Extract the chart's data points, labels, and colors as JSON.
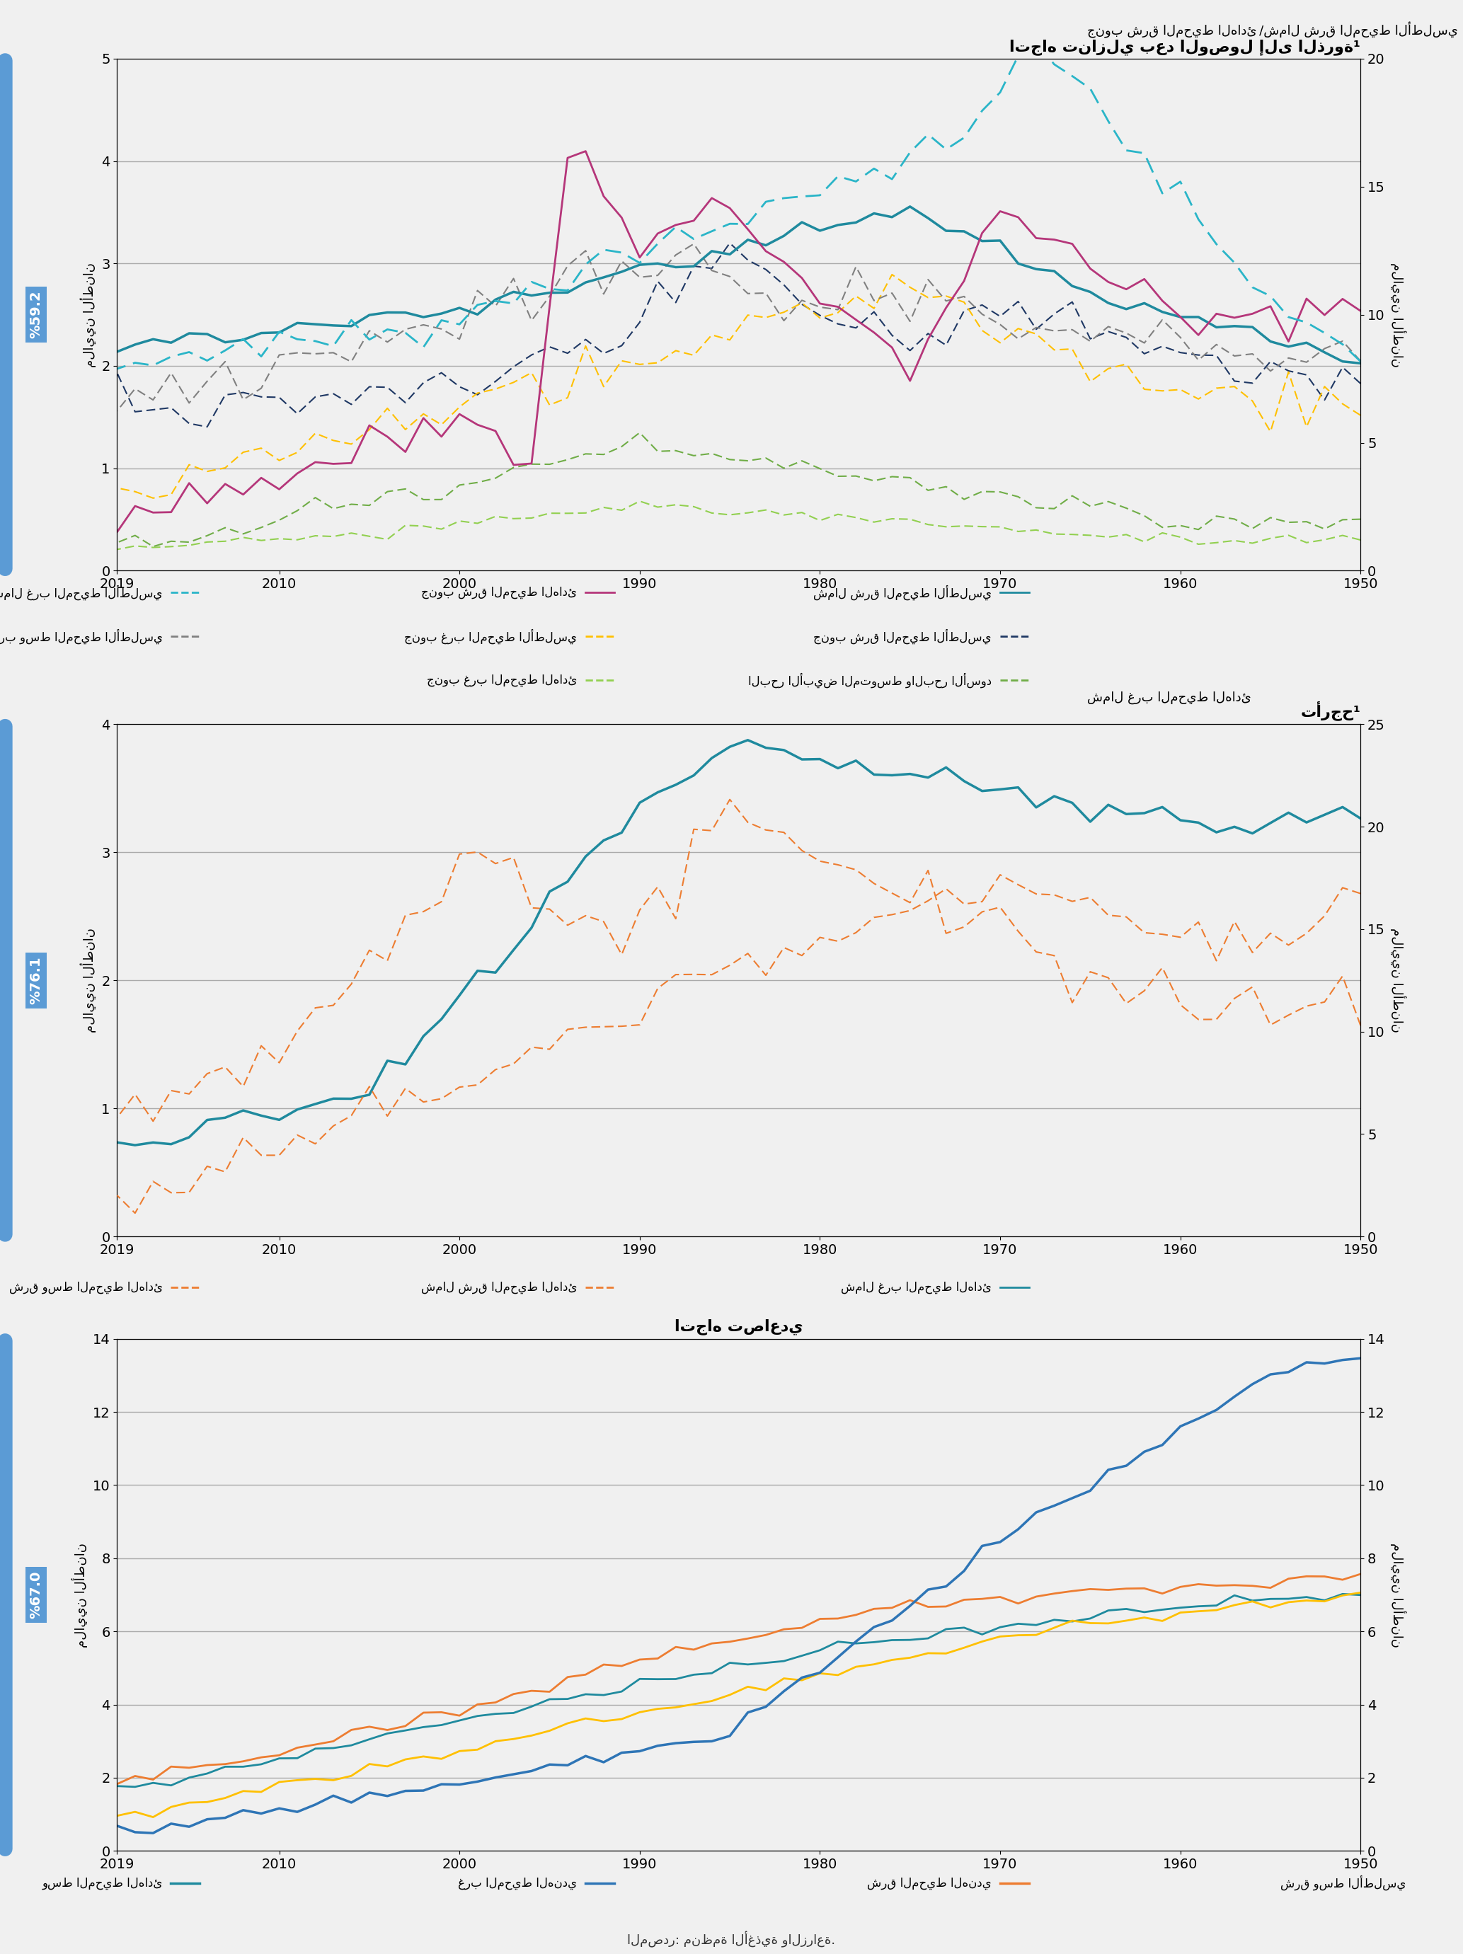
{
  "fig_width": 20.67,
  "fig_height": 27.61,
  "bg_color": "#f0f0f0",
  "panel1": {
    "title_right": "جنوب شرق المحيط الهادئ /شمال شرق المحيط الأطلسي",
    "title_left": "اتجاه تنازلي بعد الوصول إلى الذروة¹",
    "ylabel_left": "ملايين الأطنان",
    "ylabel_right": "ملايين الأطنان",
    "ylim_left": [
      0,
      5
    ],
    "ylim_right": [
      0,
      20
    ],
    "yticks_left": [
      0,
      1,
      2,
      3,
      4,
      5
    ],
    "yticks_right": [
      0,
      5,
      10,
      15,
      20
    ],
    "sustainability_label": "%59.2",
    "sustainability_color": "#5b9bd5"
  },
  "panel2": {
    "title_right": "شمال غرب المحيط الهادئ",
    "title_left": "تأرجح¹",
    "ylabel_left": "ملايين الأطنان",
    "ylabel_right": "ملايين الأطنان",
    "ylim_left": [
      0,
      4
    ],
    "ylim_right": [
      0,
      25
    ],
    "yticks_left": [
      0,
      1,
      2,
      3,
      4
    ],
    "yticks_right": [
      0,
      5,
      10,
      15,
      20,
      25
    ],
    "sustainability_label": "%76.1",
    "sustainability_color": "#5b9bd5"
  },
  "panel3": {
    "title_center": "اتجاه تصاعدي",
    "ylabel_left": "ملايين الأطنان",
    "ylim_left": [
      0,
      14
    ],
    "yticks_left": [
      0,
      2,
      4,
      6,
      8,
      10,
      12,
      14
    ],
    "sustainability_label": "%67.0",
    "sustainability_color": "#5b9bd5"
  },
  "colors": {
    "north_east_atlantic": "#1f8a9e",
    "south_east_pacific": "#b5367a",
    "south_east_atlantic": "#1f3864",
    "northwest_atlantic": "#70ad47",
    "southwest_atlantic": "#ffc000",
    "west_central_atlantic": "#808080",
    "med_black_sea": "#70ad47",
    "south_west_pacific": "#92d050",
    "nw_pacific": "#1f8a9e",
    "ne_pacific": "#ed7d31",
    "w_central_pacific": "#ed7d31",
    "indian_east": "#ed7d31",
    "indian_west": "#2e75b6",
    "indian_central": "#1f8a9e",
    "atlantic_central": "#ffc000"
  },
  "xmin": 1950,
  "xmax": 2019
}
